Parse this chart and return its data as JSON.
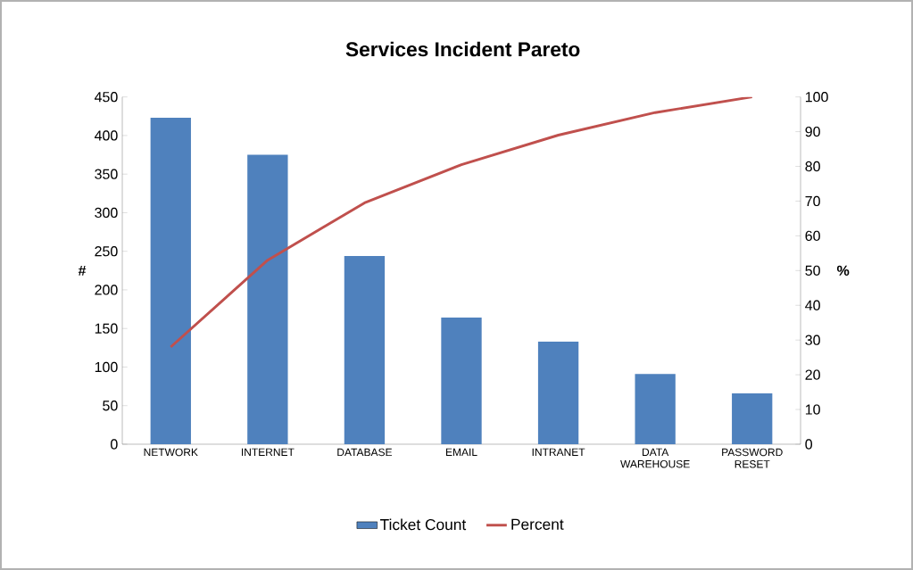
{
  "chart_data": {
    "type": "bar",
    "title": "Services Incident Pareto",
    "categories": [
      "NETWORK",
      "INTERNET",
      "DATABASE",
      "EMAIL",
      "INTRANET",
      "DATA WAREHOUSE",
      "PASSWORD RESET"
    ],
    "series": [
      {
        "name": "Ticket Count",
        "color": "#4f81bd",
        "values": [
          423,
          375,
          244,
          164,
          133,
          91,
          66
        ]
      },
      {
        "name": "Percent",
        "type": "line",
        "axis": "y2",
        "color": "#c0504d",
        "values": [
          28,
          53,
          69.5,
          80.5,
          89,
          95.5,
          100
        ]
      }
    ],
    "ylabel": "#",
    "y2label": "%",
    "ylim": [
      0,
      450
    ],
    "yticks": [
      0,
      50,
      100,
      150,
      200,
      250,
      300,
      350,
      400,
      450
    ],
    "y2lim": [
      0,
      100
    ],
    "y2ticks": [
      0,
      10,
      20,
      30,
      40,
      50,
      60,
      70,
      80,
      90,
      100
    ],
    "legend": "bottom"
  }
}
